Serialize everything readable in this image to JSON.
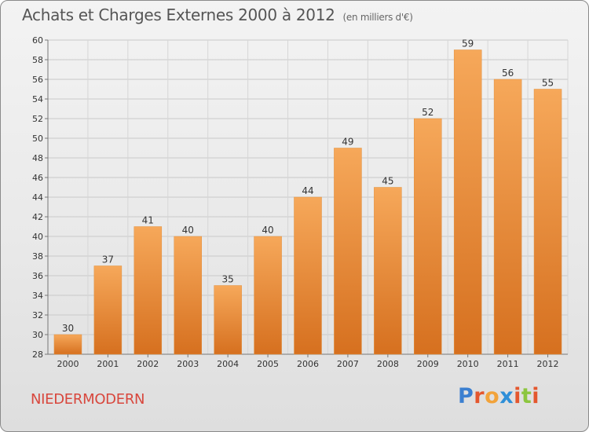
{
  "header": {
    "title": "Achats et Charges Externes 2000 à 2012",
    "subtitle": "(en milliers d'€)"
  },
  "footer": {
    "commune": "NIEDERMODERN",
    "logo_text": "Proxiti"
  },
  "colors": {
    "bar_top": "#f6a85a",
    "bar_bottom": "#d6701f",
    "commune_text": "#d8473d",
    "logo_letters": [
      "#3b7fd0",
      "#e4572e",
      "#f2a33a",
      "#2e8fd8",
      "#e4572e",
      "#8cc63f",
      "#e4572e"
    ]
  },
  "chart_data": {
    "type": "bar",
    "categories": [
      "2000",
      "2001",
      "2002",
      "2003",
      "2004",
      "2005",
      "2006",
      "2007",
      "2008",
      "2009",
      "2010",
      "2011",
      "2012"
    ],
    "values": [
      30,
      37,
      41,
      40,
      35,
      40,
      44,
      49,
      45,
      52,
      59,
      56,
      55
    ],
    "ylim": [
      28,
      60
    ],
    "yticks": [
      28,
      30,
      32,
      34,
      36,
      38,
      40,
      42,
      44,
      46,
      48,
      50,
      52,
      54,
      56,
      58,
      60
    ],
    "grid": true,
    "xlabel": "",
    "ylabel": ""
  }
}
